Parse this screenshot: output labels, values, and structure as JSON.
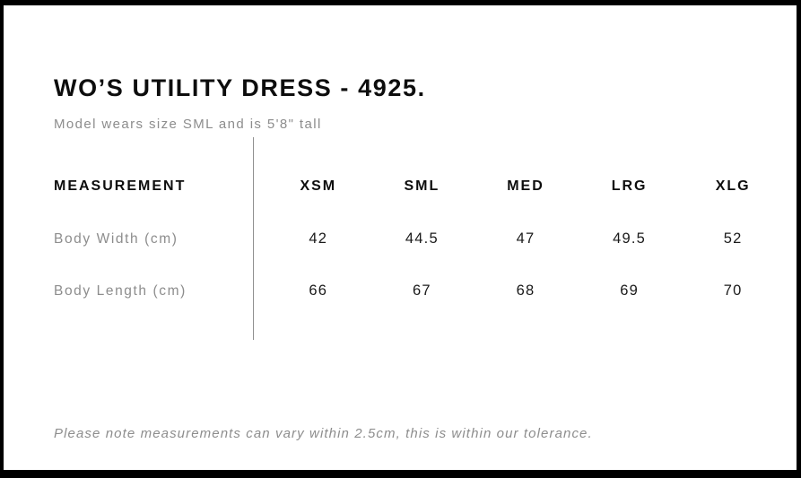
{
  "header": {
    "title": "WO’S UTILITY DRESS - 4925.",
    "model_note": "Model wears size SML and is 5'8\" tall"
  },
  "chart_data": {
    "type": "table",
    "title": "WO’S UTILITY DRESS - 4925.",
    "columns": [
      "MEASUREMENT",
      "XSM",
      "SML",
      "MED",
      "LRG",
      "XLG"
    ],
    "rows": [
      {
        "label": "Body Width (cm)",
        "values": [
          42,
          44.5,
          47,
          49.5,
          52
        ]
      },
      {
        "label": "Body Length (cm)",
        "values": [
          66,
          67,
          68,
          69,
          70
        ]
      }
    ]
  },
  "footer": {
    "note": "Please note measurements can vary within 2.5cm, this is within our tolerance."
  },
  "colors": {
    "frame": "#000000",
    "background": "#ffffff",
    "text_primary": "#0d0d0d",
    "text_secondary": "#8d8d8d",
    "divider": "#919191"
  }
}
